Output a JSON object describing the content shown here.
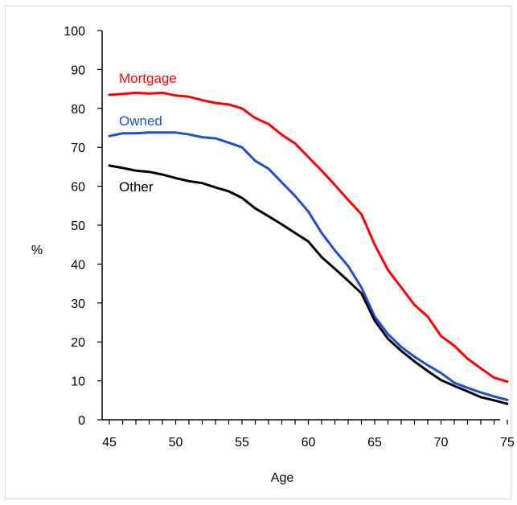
{
  "chart_data": {
    "type": "line",
    "title": "",
    "xlabel": "Age",
    "ylabel": "%",
    "xlim": [
      45,
      75
    ],
    "ylim": [
      0,
      100
    ],
    "xticks": [
      45,
      50,
      55,
      60,
      65,
      70,
      75
    ],
    "yticks": [
      0,
      10,
      20,
      30,
      40,
      50,
      60,
      70,
      80,
      90,
      100
    ],
    "grid": false,
    "legend": "inline labels",
    "x": [
      45,
      46,
      47,
      48,
      49,
      50,
      51,
      52,
      53,
      54,
      55,
      56,
      57,
      58,
      59,
      60,
      61,
      62,
      63,
      64,
      65,
      66,
      67,
      68,
      69,
      70,
      71,
      72,
      73,
      74,
      75
    ],
    "series": [
      {
        "name": "Mortgage",
        "color": "#ff0000",
        "values": [
          83.5,
          83.7,
          84,
          83.8,
          84,
          83.3,
          83,
          82.1,
          81.4,
          81,
          80,
          77.5,
          76,
          73.2,
          71,
          67.5,
          64,
          60.3,
          56.5,
          52.8,
          45,
          38.5,
          34,
          29.5,
          26.5,
          21.5,
          19,
          15.7,
          13.2,
          10.8,
          9.8
        ]
      },
      {
        "name": "Owned",
        "color": "#1f4fcc",
        "values": [
          72.9,
          73.6,
          73.6,
          73.8,
          73.8,
          73.8,
          73.3,
          72.6,
          72.3,
          71.2,
          70,
          66.5,
          64.5,
          61,
          57.5,
          53.5,
          48,
          43.5,
          39.5,
          34,
          26.5,
          22,
          18.7,
          16.2,
          14,
          12,
          9.5,
          8.2,
          7,
          6,
          5.1
        ]
      },
      {
        "name": "Other",
        "color": "#000000",
        "values": [
          65.3,
          64.7,
          64,
          63.7,
          63,
          62.1,
          61.3,
          60.8,
          59.7,
          58.7,
          57,
          54.3,
          52.3,
          50.2,
          48,
          45.8,
          41.8,
          38.8,
          35.7,
          32.5,
          25.5,
          20.8,
          17.7,
          15,
          12.5,
          10.2,
          8.7,
          7.3,
          5.8,
          5,
          4.1
        ]
      }
    ]
  }
}
